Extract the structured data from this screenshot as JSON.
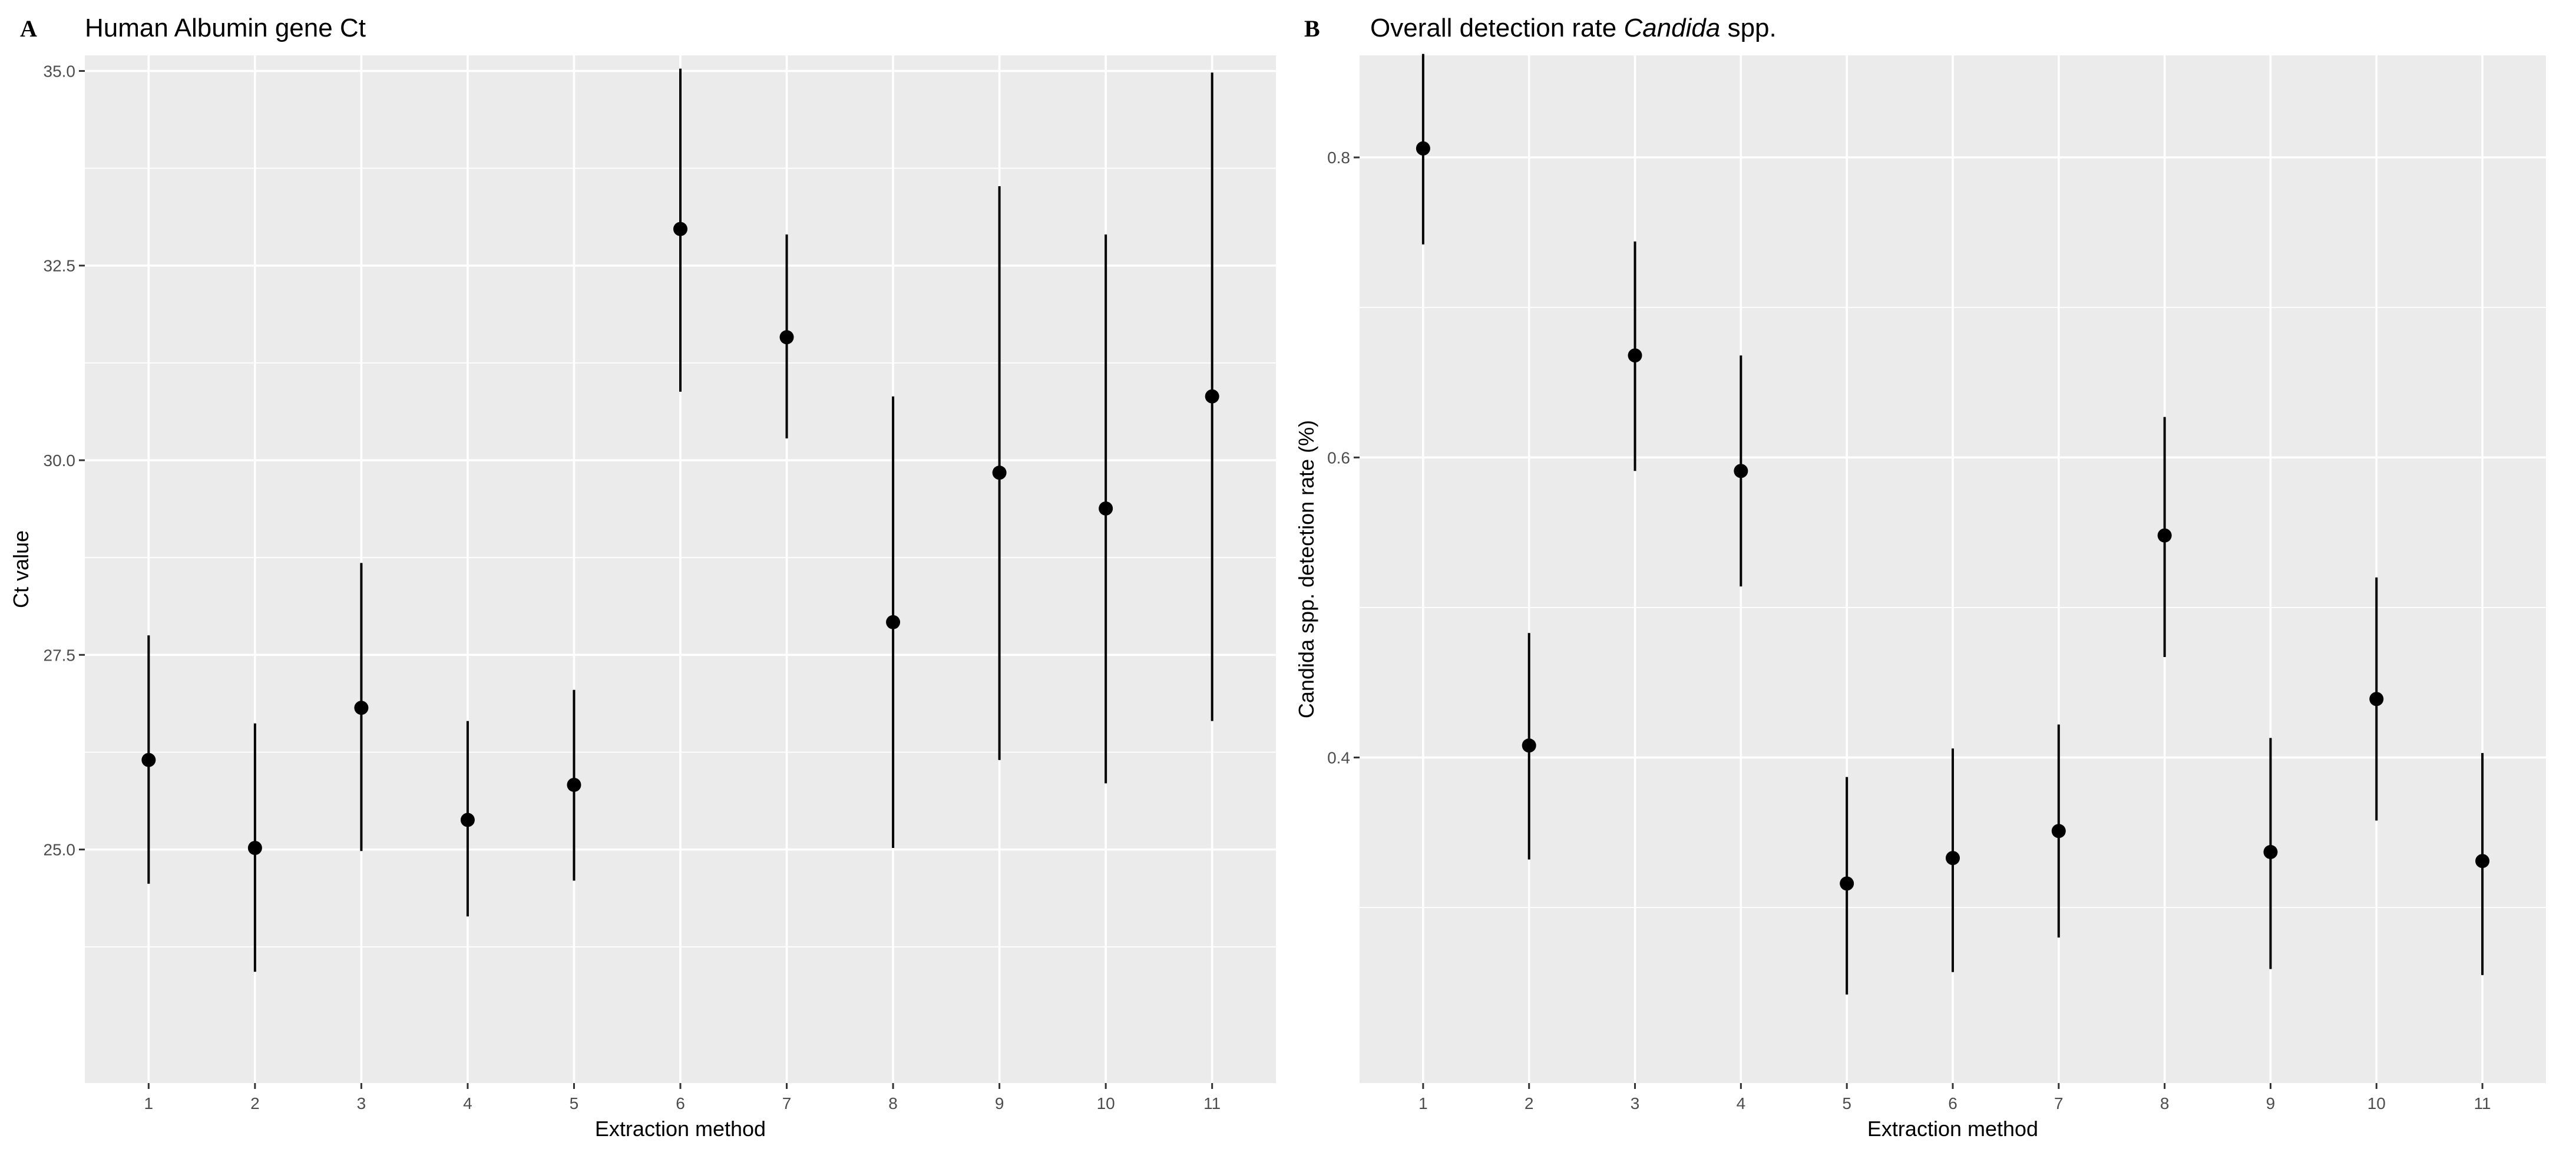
{
  "chart_data": [
    {
      "type": "scatter",
      "panel_label": "A",
      "title": "Human Albumin gene Ct",
      "xlabel": "Extraction method",
      "ylabel": "Ct value",
      "x_ticks": [
        "1",
        "2",
        "3",
        "4",
        "5",
        "6",
        "7",
        "8",
        "9",
        "10",
        "11"
      ],
      "y_ticks": [
        "25.0",
        "27.5",
        "30.0",
        "32.5",
        "35.0"
      ],
      "y_tick_values": [
        25.0,
        27.5,
        30.0,
        32.5,
        35.0
      ],
      "xlim": [
        0.4,
        11.6
      ],
      "ylim": [
        22.0,
        35.2
      ],
      "grid": true,
      "series": [
        {
          "name": "Ct",
          "x": [
            1,
            2,
            3,
            4,
            5,
            6,
            7,
            8,
            9,
            10,
            11
          ],
          "y": [
            26.15,
            25.02,
            26.82,
            25.38,
            25.83,
            32.97,
            31.58,
            27.92,
            29.84,
            29.38,
            30.82
          ],
          "lower": [
            24.56,
            23.43,
            24.98,
            24.14,
            24.6,
            30.88,
            30.28,
            25.02,
            26.15,
            25.85,
            26.65
          ],
          "upper": [
            27.75,
            26.62,
            28.68,
            26.65,
            27.05,
            35.03,
            32.9,
            30.82,
            33.52,
            32.9,
            34.98
          ]
        }
      ]
    },
    {
      "type": "scatter",
      "panel_label": "B",
      "title_prefix": "Overall detection rate ",
      "title_italic": "Candida",
      "title_suffix": " spp.",
      "xlabel": "Extraction method",
      "ylabel": "Candida spp. detection rate (%)",
      "x_ticks": [
        "1",
        "2",
        "3",
        "4",
        "5",
        "6",
        "7",
        "8",
        "9",
        "10",
        "11"
      ],
      "y_ticks": [
        "0.4",
        "0.6",
        "0.8"
      ],
      "y_tick_values": [
        0.4,
        0.6,
        0.8
      ],
      "xlim": [
        0.4,
        11.6
      ],
      "ylim": [
        0.183,
        0.868
      ],
      "grid": true,
      "series": [
        {
          "name": "Detection rate",
          "x": [
            1,
            2,
            3,
            4,
            5,
            6,
            7,
            8,
            9,
            10,
            11
          ],
          "y": [
            0.806,
            0.408,
            0.668,
            0.591,
            0.316,
            0.333,
            0.351,
            0.548,
            0.337,
            0.439,
            0.331
          ],
          "lower": [
            0.742,
            0.332,
            0.591,
            0.514,
            0.242,
            0.257,
            0.28,
            0.467,
            0.259,
            0.358,
            0.255
          ],
          "upper": [
            0.869,
            0.483,
            0.744,
            0.668,
            0.387,
            0.406,
            0.422,
            0.627,
            0.413,
            0.52,
            0.403
          ]
        }
      ]
    }
  ]
}
